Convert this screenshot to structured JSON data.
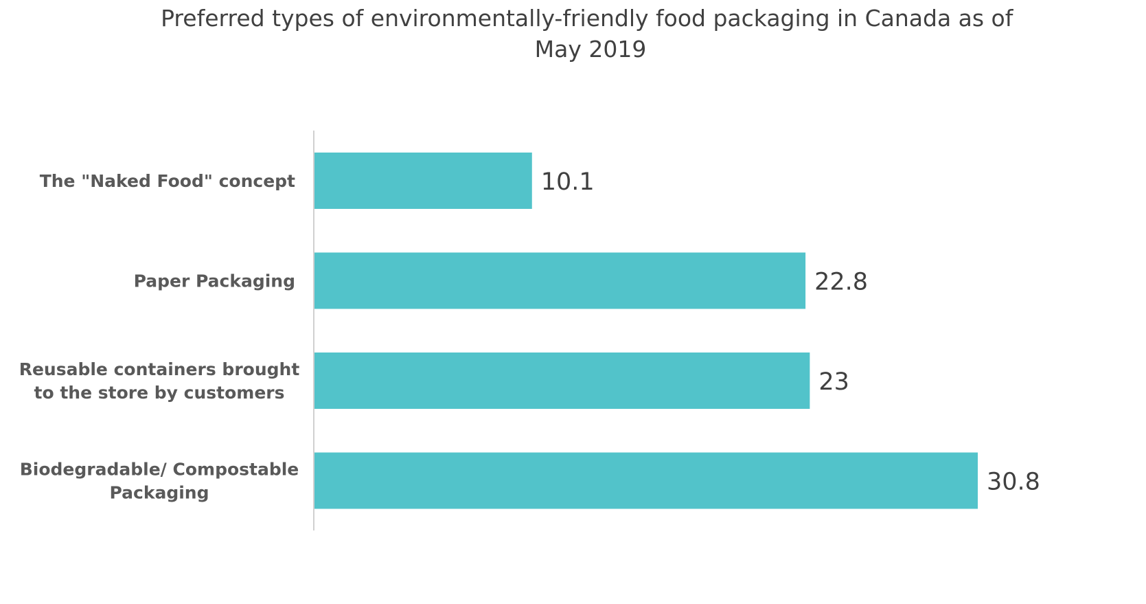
{
  "chart_data": {
    "type": "bar",
    "orientation": "horizontal",
    "title": "Preferred types of environmentally-friendly food packaging in Canada as of May 2019",
    "title_lines": [
      "Preferred types of environmentally-friendly food packaging in Canada as of",
      "May 2019"
    ],
    "categories": [
      "The \"Naked Food\" concept",
      "Paper Packaging",
      "Reusable containers brought to the store by customers",
      "Biodegradable/ Compostable Packaging"
    ],
    "category_lines": [
      [
        "The \"Naked Food\" concept"
      ],
      [
        "Paper Packaging"
      ],
      [
        "Reusable containers brought",
        "to the store by customers"
      ],
      [
        "Biodegradable/ Compostable",
        "Packaging"
      ]
    ],
    "values": [
      10.1,
      22.8,
      23,
      30.8
    ],
    "value_labels": [
      "10.1",
      "22.8",
      "23",
      "30.8"
    ],
    "xlabel": "",
    "ylabel": "",
    "xlim": [
      0,
      33
    ],
    "grid": false,
    "legend": "none",
    "bar_color": "#52c3ca"
  }
}
